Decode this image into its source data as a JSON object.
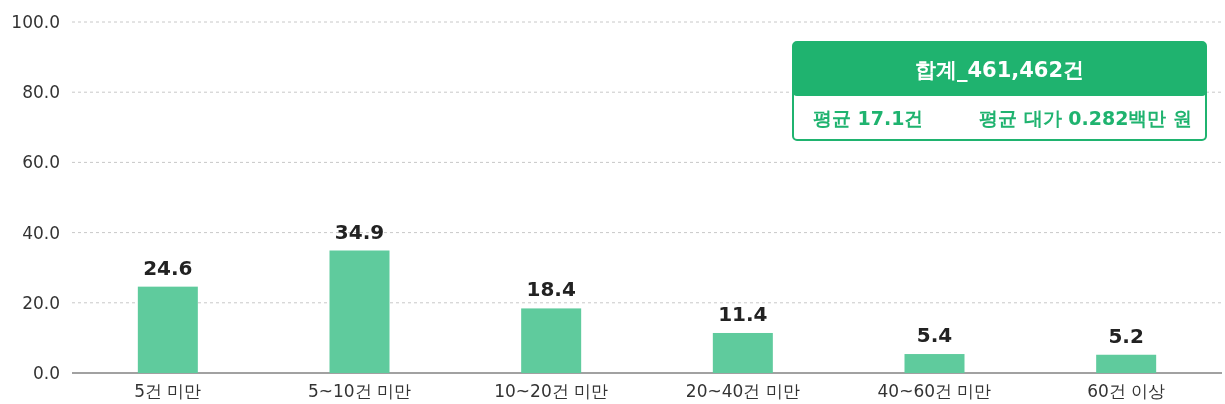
{
  "chart_data": {
    "type": "bar",
    "categories": [
      "5건 미만",
      "5~10건 미만",
      "10~20건 미만",
      "20~40건 미만",
      "40~60건 미만",
      "60건 이상"
    ],
    "values": [
      24.6,
      34.9,
      18.4,
      11.4,
      5.4,
      5.2
    ],
    "color": "#5fcb9d",
    "ylim": [
      0,
      100
    ],
    "yticks": [
      {
        "value": 0,
        "label": "0.0"
      },
      {
        "value": 20,
        "label": "20.0"
      },
      {
        "value": 40,
        "label": "40.0"
      },
      {
        "value": 60,
        "label": "60.0"
      },
      {
        "value": 80,
        "label": "80.0"
      },
      {
        "value": 100,
        "label": "100.0"
      }
    ],
    "grid": "y",
    "data_labels": true,
    "annotations": [
      "합계_461,462건",
      "평균 17.1건",
      "평균 대가 0.282백만 원"
    ]
  }
}
